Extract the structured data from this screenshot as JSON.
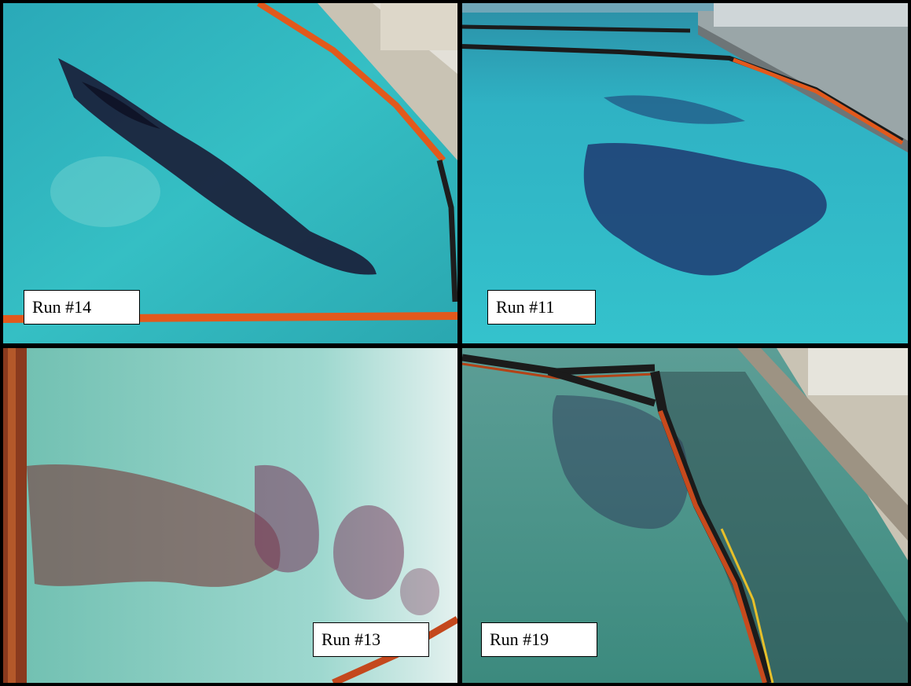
{
  "panels": [
    {
      "id": "run-14",
      "label": "Run #14"
    },
    {
      "id": "run-11",
      "label": "Run #11"
    },
    {
      "id": "run-13",
      "label": "Run #13"
    },
    {
      "id": "run-19",
      "label": "Run #19"
    }
  ],
  "colors": {
    "water_cyan": "#2fb4bf",
    "water_green": "#3a9a8c",
    "oil_dark": "#1a1f3a",
    "boom_orange": "#e2591c",
    "concrete": "#c9c3b4"
  }
}
